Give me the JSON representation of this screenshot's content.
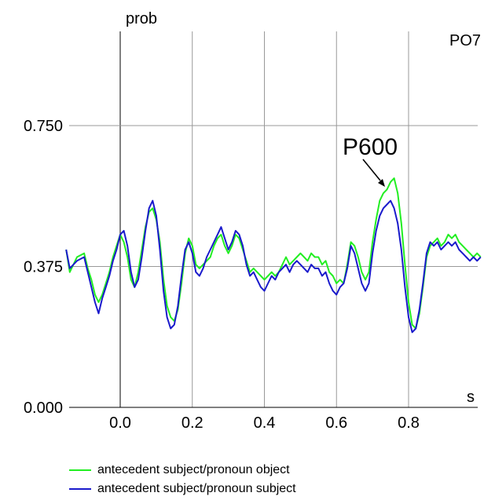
{
  "chart_data": {
    "type": "line",
    "ylabel": "prob",
    "xlabel": "s",
    "channel": "PO7",
    "xlim": [
      -0.15,
      1.0
    ],
    "ylim": [
      0.0,
      1.0
    ],
    "x_ticks": [
      {
        "value": 0.0,
        "label": "0.0"
      },
      {
        "value": 0.2,
        "label": "0.2"
      },
      {
        "value": 0.4,
        "label": "0.4"
      },
      {
        "value": 0.6,
        "label": "0.6"
      },
      {
        "value": 0.8,
        "label": "0.8"
      }
    ],
    "y_ticks": [
      {
        "value": 0.0,
        "label": "0.000"
      },
      {
        "value": 0.375,
        "label": "0.375"
      },
      {
        "value": 0.75,
        "label": "0.750"
      }
    ],
    "grid": true,
    "annotation": {
      "text": "P600",
      "x": 0.76,
      "y": 0.6
    },
    "series": [
      {
        "name": "antecedent subject/pronoun object",
        "color": "#22ee22",
        "x": [
          -0.15,
          -0.14,
          -0.12,
          -0.1,
          -0.09,
          -0.08,
          -0.07,
          -0.06,
          -0.05,
          -0.04,
          -0.03,
          -0.02,
          -0.01,
          0.0,
          0.01,
          0.02,
          0.03,
          0.04,
          0.05,
          0.06,
          0.07,
          0.08,
          0.09,
          0.1,
          0.11,
          0.12,
          0.13,
          0.14,
          0.15,
          0.16,
          0.17,
          0.18,
          0.19,
          0.2,
          0.21,
          0.22,
          0.23,
          0.24,
          0.25,
          0.26,
          0.27,
          0.28,
          0.29,
          0.3,
          0.31,
          0.32,
          0.33,
          0.34,
          0.35,
          0.36,
          0.37,
          0.38,
          0.39,
          0.4,
          0.41,
          0.42,
          0.43,
          0.44,
          0.45,
          0.46,
          0.47,
          0.48,
          0.49,
          0.5,
          0.51,
          0.52,
          0.53,
          0.54,
          0.55,
          0.56,
          0.57,
          0.58,
          0.59,
          0.6,
          0.61,
          0.62,
          0.63,
          0.64,
          0.65,
          0.66,
          0.67,
          0.68,
          0.69,
          0.7,
          0.71,
          0.72,
          0.73,
          0.74,
          0.75,
          0.76,
          0.77,
          0.78,
          0.79,
          0.8,
          0.81,
          0.82,
          0.83,
          0.84,
          0.85,
          0.86,
          0.87,
          0.88,
          0.89,
          0.9,
          0.91,
          0.92,
          0.93,
          0.94,
          0.95,
          0.96,
          0.97,
          0.98,
          0.99,
          1.0
        ],
        "values": [
          0.42,
          0.36,
          0.4,
          0.41,
          0.37,
          0.34,
          0.3,
          0.28,
          0.3,
          0.33,
          0.36,
          0.4,
          0.43,
          0.46,
          0.44,
          0.4,
          0.34,
          0.32,
          0.36,
          0.42,
          0.48,
          0.52,
          0.53,
          0.5,
          0.44,
          0.34,
          0.27,
          0.24,
          0.23,
          0.26,
          0.33,
          0.41,
          0.45,
          0.43,
          0.38,
          0.37,
          0.38,
          0.39,
          0.4,
          0.43,
          0.45,
          0.46,
          0.43,
          0.41,
          0.43,
          0.46,
          0.45,
          0.42,
          0.39,
          0.36,
          0.37,
          0.36,
          0.35,
          0.34,
          0.35,
          0.36,
          0.35,
          0.36,
          0.38,
          0.4,
          0.38,
          0.39,
          0.4,
          0.41,
          0.4,
          0.39,
          0.41,
          0.4,
          0.4,
          0.38,
          0.39,
          0.36,
          0.35,
          0.33,
          0.34,
          0.33,
          0.38,
          0.44,
          0.43,
          0.4,
          0.36,
          0.34,
          0.36,
          0.44,
          0.5,
          0.55,
          0.57,
          0.58,
          0.6,
          0.61,
          0.57,
          0.49,
          0.38,
          0.28,
          0.22,
          0.21,
          0.25,
          0.32,
          0.4,
          0.43,
          0.44,
          0.45,
          0.43,
          0.44,
          0.46,
          0.45,
          0.46,
          0.44,
          0.43,
          0.42,
          0.41,
          0.4,
          0.41,
          0.4
        ]
      },
      {
        "name": "antecedent subject/pronoun subject",
        "color": "#1a1acc",
        "x": [
          -0.15,
          -0.14,
          -0.12,
          -0.1,
          -0.09,
          -0.08,
          -0.07,
          -0.06,
          -0.05,
          -0.04,
          -0.03,
          -0.02,
          -0.01,
          0.0,
          0.01,
          0.02,
          0.03,
          0.04,
          0.05,
          0.06,
          0.07,
          0.08,
          0.09,
          0.1,
          0.11,
          0.12,
          0.13,
          0.14,
          0.15,
          0.16,
          0.17,
          0.18,
          0.19,
          0.2,
          0.21,
          0.22,
          0.23,
          0.24,
          0.25,
          0.26,
          0.27,
          0.28,
          0.29,
          0.3,
          0.31,
          0.32,
          0.33,
          0.34,
          0.35,
          0.36,
          0.37,
          0.38,
          0.39,
          0.4,
          0.41,
          0.42,
          0.43,
          0.44,
          0.45,
          0.46,
          0.47,
          0.48,
          0.49,
          0.5,
          0.51,
          0.52,
          0.53,
          0.54,
          0.55,
          0.56,
          0.57,
          0.58,
          0.59,
          0.6,
          0.61,
          0.62,
          0.63,
          0.64,
          0.65,
          0.66,
          0.67,
          0.68,
          0.69,
          0.7,
          0.71,
          0.72,
          0.73,
          0.74,
          0.75,
          0.76,
          0.77,
          0.78,
          0.79,
          0.8,
          0.81,
          0.82,
          0.83,
          0.84,
          0.85,
          0.86,
          0.87,
          0.88,
          0.89,
          0.9,
          0.91,
          0.92,
          0.93,
          0.94,
          0.95,
          0.96,
          0.97,
          0.98,
          0.99,
          1.0
        ],
        "values": [
          0.42,
          0.37,
          0.39,
          0.4,
          0.36,
          0.32,
          0.28,
          0.25,
          0.29,
          0.32,
          0.35,
          0.39,
          0.42,
          0.46,
          0.47,
          0.43,
          0.36,
          0.32,
          0.34,
          0.4,
          0.47,
          0.53,
          0.55,
          0.51,
          0.42,
          0.31,
          0.24,
          0.21,
          0.22,
          0.27,
          0.35,
          0.42,
          0.44,
          0.41,
          0.36,
          0.35,
          0.37,
          0.4,
          0.42,
          0.44,
          0.46,
          0.48,
          0.45,
          0.42,
          0.44,
          0.47,
          0.46,
          0.43,
          0.38,
          0.35,
          0.36,
          0.34,
          0.32,
          0.31,
          0.33,
          0.35,
          0.34,
          0.36,
          0.37,
          0.38,
          0.36,
          0.38,
          0.39,
          0.38,
          0.37,
          0.36,
          0.38,
          0.37,
          0.37,
          0.35,
          0.36,
          0.33,
          0.31,
          0.3,
          0.32,
          0.33,
          0.37,
          0.43,
          0.41,
          0.37,
          0.33,
          0.31,
          0.33,
          0.41,
          0.47,
          0.51,
          0.53,
          0.54,
          0.55,
          0.53,
          0.49,
          0.42,
          0.32,
          0.24,
          0.2,
          0.21,
          0.26,
          0.33,
          0.41,
          0.44,
          0.43,
          0.44,
          0.42,
          0.43,
          0.44,
          0.43,
          0.44,
          0.42,
          0.41,
          0.4,
          0.39,
          0.4,
          0.39,
          0.4
        ]
      }
    ]
  }
}
